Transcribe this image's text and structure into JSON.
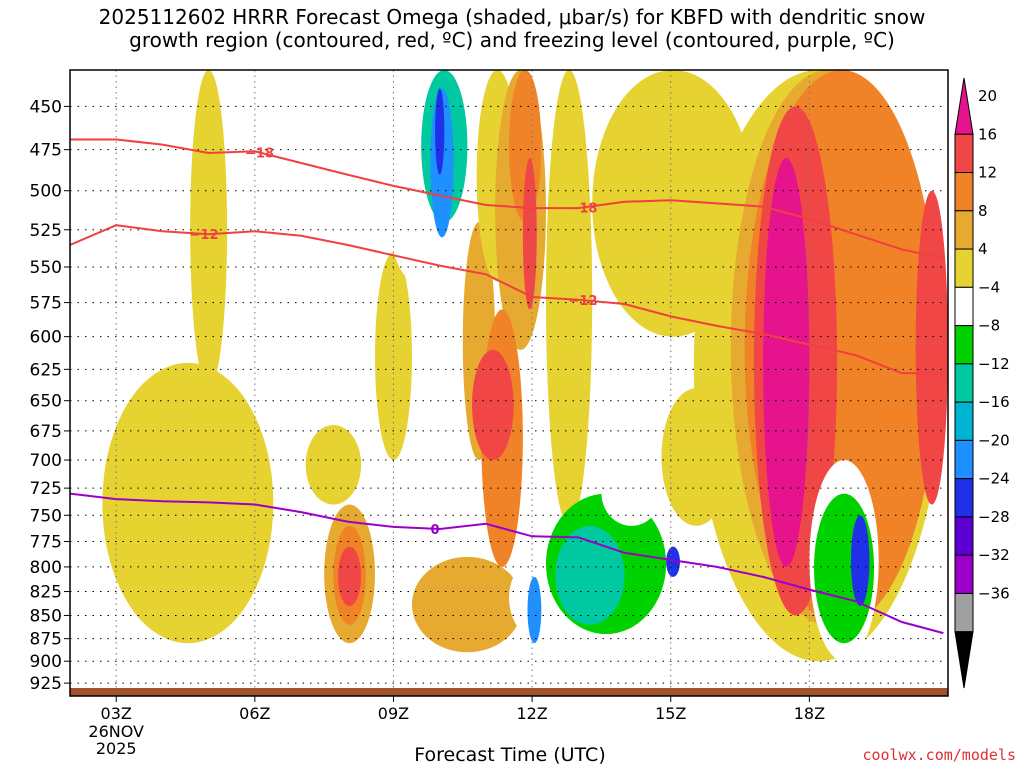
{
  "chart_data": {
    "type": "heatmap",
    "title": "2025112602 HRRR Forecast Omega (shaded, μbar/s) for KBFD with dendritic snow\ngrowth region (contoured, red, ºC) and freezing level (contoured, purple, ºC)",
    "xlabel": "Forecast Time (UTC)",
    "ylabel": "",
    "x_ticks": [
      {
        "label": "03Z",
        "hour": 3,
        "sub": [
          "26NOV",
          "2025"
        ]
      },
      {
        "label": "06Z",
        "hour": 6,
        "sub": []
      },
      {
        "label": "09Z",
        "hour": 9,
        "sub": []
      },
      {
        "label": "12Z",
        "hour": 12,
        "sub": []
      },
      {
        "label": "15Z",
        "hour": 15,
        "sub": []
      },
      {
        "label": "18Z",
        "hour": 18,
        "sub": []
      }
    ],
    "x_range_hours": [
      2,
      21
    ],
    "y_ticks": [
      450,
      475,
      500,
      525,
      550,
      575,
      600,
      625,
      650,
      675,
      700,
      725,
      750,
      775,
      800,
      825,
      850,
      875,
      900,
      925
    ],
    "y_range_hpa": [
      430,
      940
    ],
    "y_scale": "log",
    "grid": true,
    "colorbar": {
      "levels": [
        -36,
        -32,
        -28,
        -24,
        -20,
        -16,
        -12,
        -8,
        -4,
        4,
        8,
        12,
        16,
        20
      ],
      "labels": [
        "20",
        "16",
        "12",
        "8",
        "4",
        "−4",
        "−8",
        "−12",
        "−16",
        "−20",
        "−24",
        "−28",
        "−32",
        "−36"
      ],
      "colors": [
        "#000000",
        "#a0a0a0",
        "#9b00c8",
        "#5a00d2",
        "#2030e6",
        "#1e90ff",
        "#00b4d2",
        "#00c8a0",
        "#00d200",
        "#ffffff",
        "#e6d230",
        "#e6aa30",
        "#f08228",
        "#f04646",
        "#e6148c"
      ]
    },
    "omega_cells": [
      {
        "x0": 4.6,
        "x1": 5.4,
        "p0": 430,
        "p1": 640,
        "level": 4
      },
      {
        "x0": 2.7,
        "x1": 6.4,
        "p0": 620,
        "p1": 880,
        "level": 4
      },
      {
        "x0": 7.1,
        "x1": 8.3,
        "p0": 670,
        "p1": 740,
        "level": 4
      },
      {
        "x0": 8.6,
        "x1": 9.4,
        "p0": 540,
        "p1": 700,
        "level": 4
      },
      {
        "x0": 6.0,
        "x1": 6.4,
        "p0": 470,
        "p1": 610,
        "level": -4
      },
      {
        "x0": 5.9,
        "x1": 6.4,
        "p0": 500,
        "p1": 670,
        "level": -4
      },
      {
        "x0": 6.6,
        "x1": 7.2,
        "p0": 470,
        "p1": 520,
        "level": -4
      },
      {
        "x0": 6.8,
        "x1": 7.2,
        "p0": 770,
        "p1": 920,
        "level": -4
      },
      {
        "x0": 8.7,
        "x1": 9.5,
        "p0": 430,
        "p1": 475,
        "level": -4
      },
      {
        "x0": 8.9,
        "x1": 10.1,
        "p0": 475,
        "p1": 560,
        "level": -4
      },
      {
        "x0": 9.6,
        "x1": 10.6,
        "p0": 430,
        "p1": 520,
        "level": -12
      },
      {
        "x0": 9.8,
        "x1": 10.3,
        "p0": 440,
        "p1": 530,
        "level": -20
      },
      {
        "x0": 9.9,
        "x1": 10.1,
        "p0": 440,
        "p1": 490,
        "level": -24
      },
      {
        "x0": 10.5,
        "x1": 11.2,
        "p0": 520,
        "p1": 700,
        "level": 8
      },
      {
        "x0": 10.8,
        "x1": 11.7,
        "p0": 430,
        "p1": 560,
        "level": 4
      },
      {
        "x0": 11.2,
        "x1": 12.3,
        "p0": 430,
        "p1": 610,
        "level": 8
      },
      {
        "x0": 11.5,
        "x1": 12.2,
        "p0": 430,
        "p1": 520,
        "level": 12
      },
      {
        "x0": 11.8,
        "x1": 12.1,
        "p0": 480,
        "p1": 580,
        "level": 16
      },
      {
        "x0": 12.3,
        "x1": 13.3,
        "p0": 430,
        "p1": 760,
        "level": 4
      },
      {
        "x0": 10.9,
        "x1": 11.8,
        "p0": 580,
        "p1": 800,
        "level": 12
      },
      {
        "x0": 10.7,
        "x1": 11.6,
        "p0": 610,
        "p1": 700,
        "level": 16
      },
      {
        "x0": 7.5,
        "x1": 8.6,
        "p0": 740,
        "p1": 880,
        "level": 8
      },
      {
        "x0": 7.7,
        "x1": 8.4,
        "p0": 760,
        "p1": 860,
        "level": 12
      },
      {
        "x0": 7.8,
        "x1": 8.3,
        "p0": 780,
        "p1": 840,
        "level": 16
      },
      {
        "x0": 9.4,
        "x1": 11.8,
        "p0": 790,
        "p1": 890,
        "level": 8
      },
      {
        "x0": 11.5,
        "x1": 15.8,
        "p0": 760,
        "p1": 910,
        "level": -4
      },
      {
        "x0": 12.3,
        "x1": 14.9,
        "p0": 730,
        "p1": 870,
        "level": -8
      },
      {
        "x0": 13.5,
        "x1": 14.8,
        "p0": 700,
        "p1": 760,
        "level": -4
      },
      {
        "x0": 12.5,
        "x1": 14.0,
        "p0": 760,
        "p1": 860,
        "level": -12
      },
      {
        "x0": 11.9,
        "x1": 12.2,
        "p0": 810,
        "p1": 880,
        "level": -20
      },
      {
        "x0": 14.9,
        "x1": 15.2,
        "p0": 780,
        "p1": 810,
        "level": -24
      },
      {
        "x0": 13.3,
        "x1": 16.8,
        "p0": 430,
        "p1": 600,
        "level": 4
      },
      {
        "x0": 15.5,
        "x1": 20.9,
        "p0": 430,
        "p1": 900,
        "level": 4
      },
      {
        "x0": 14.8,
        "x1": 16.3,
        "p0": 640,
        "p1": 760,
        "level": 4
      },
      {
        "x0": 16.3,
        "x1": 20.5,
        "p0": 430,
        "p1": 860,
        "level": 8
      },
      {
        "x0": 16.6,
        "x1": 20.8,
        "p0": 430,
        "p1": 860,
        "level": 12
      },
      {
        "x0": 16.8,
        "x1": 18.6,
        "p0": 450,
        "p1": 850,
        "level": 16
      },
      {
        "x0": 17.0,
        "x1": 18.0,
        "p0": 480,
        "p1": 800,
        "level": 20
      },
      {
        "x0": 20.3,
        "x1": 21.0,
        "p0": 500,
        "p1": 740,
        "level": 16
      },
      {
        "x0": 18.0,
        "x1": 19.5,
        "p0": 700,
        "p1": 900,
        "level": -4
      },
      {
        "x0": 18.1,
        "x1": 19.4,
        "p0": 730,
        "p1": 880,
        "level": -8
      },
      {
        "x0": 18.9,
        "x1": 19.3,
        "p0": 750,
        "p1": 840,
        "level": -24
      }
    ],
    "dgz_minus18": {
      "label": "−18",
      "points": [
        [
          2,
          469
        ],
        [
          3,
          469
        ],
        [
          4,
          472
        ],
        [
          5,
          477
        ],
        [
          6,
          476
        ],
        [
          7,
          483
        ],
        [
          8,
          490
        ],
        [
          9,
          497
        ],
        [
          10,
          503
        ],
        [
          11,
          509
        ],
        [
          12,
          511
        ],
        [
          13,
          511
        ],
        [
          14,
          507
        ],
        [
          15,
          506
        ],
        [
          16,
          508
        ],
        [
          17,
          510
        ],
        [
          18,
          518
        ],
        [
          19,
          528
        ],
        [
          20,
          538
        ],
        [
          20.9,
          544
        ]
      ],
      "label_hours": [
        6.1,
        13.1
      ]
    },
    "dgz_minus12": {
      "label": "−12",
      "points": [
        [
          2,
          535
        ],
        [
          3,
          522
        ],
        [
          4,
          526
        ],
        [
          5,
          528
        ],
        [
          6,
          526
        ],
        [
          7,
          529
        ],
        [
          8,
          535
        ],
        [
          9,
          542
        ],
        [
          10,
          549
        ],
        [
          11,
          555
        ],
        [
          12,
          571
        ],
        [
          13,
          573
        ],
        [
          14,
          576
        ],
        [
          15,
          585
        ],
        [
          16,
          592
        ],
        [
          17,
          598
        ],
        [
          18,
          606
        ],
        [
          19,
          614
        ],
        [
          20,
          628
        ],
        [
          20.9,
          628
        ]
      ],
      "label_hours": [
        4.9,
        13.1
      ]
    },
    "freezing_0": {
      "label": "0",
      "points": [
        [
          2,
          730
        ],
        [
          3,
          735
        ],
        [
          4,
          737
        ],
        [
          5,
          738
        ],
        [
          6,
          740
        ],
        [
          7,
          747
        ],
        [
          8,
          756
        ],
        [
          9,
          761
        ],
        [
          10,
          763
        ],
        [
          11,
          758
        ],
        [
          12,
          770
        ],
        [
          13,
          771
        ],
        [
          14,
          786
        ],
        [
          15,
          793
        ],
        [
          16,
          800
        ],
        [
          17,
          810
        ],
        [
          18,
          823
        ],
        [
          19,
          835
        ],
        [
          20,
          857
        ],
        [
          20.9,
          869
        ]
      ],
      "label_hours": [
        9.9
      ]
    },
    "credit": "coolwx.com/models"
  }
}
